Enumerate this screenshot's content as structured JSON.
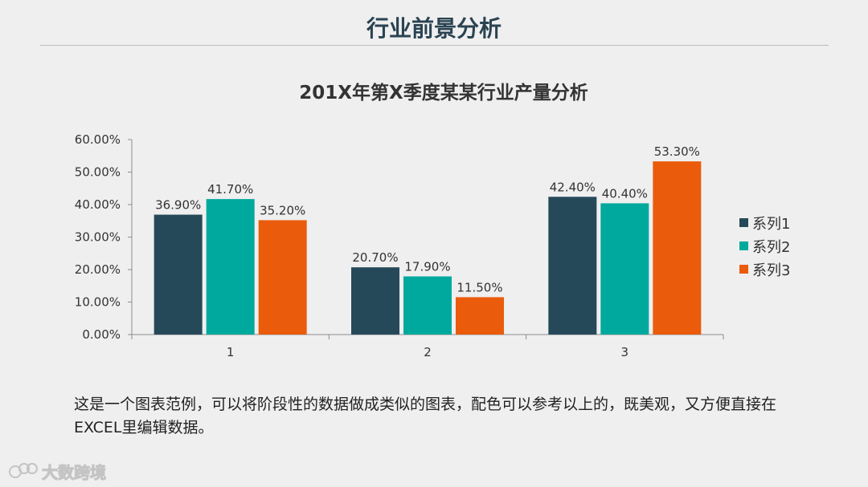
{
  "page": {
    "title": "行业前景分析",
    "caption": "这是一个图表范例，可以将阶段性的数据做成类似的图表，配色可以参考以上的，既美观，又方便直接在EXCEL里编辑数据。",
    "watermark": "大数跨境"
  },
  "colors": {
    "series1": "#26495a",
    "series2": "#00a99d",
    "series3": "#ea5b0c",
    "axis": "#8c8c8c",
    "grid": "#d9d9d9"
  },
  "chart_data": {
    "type": "bar",
    "title": "201X年第X季度某某行业产量分析",
    "categories": [
      "1",
      "2",
      "3"
    ],
    "series": [
      {
        "name": "系列1",
        "values": [
          36.9,
          20.7,
          42.4
        ],
        "labels": [
          "36.90%",
          "20.70%",
          "42.40%"
        ]
      },
      {
        "name": "系列2",
        "values": [
          41.7,
          17.9,
          40.4
        ],
        "labels": [
          "41.70%",
          "17.90%",
          "40.40%"
        ]
      },
      {
        "name": "系列3",
        "values": [
          35.2,
          11.5,
          53.3
        ],
        "labels": [
          "35.20%",
          "11.50%",
          "53.30%"
        ]
      }
    ],
    "ylim": [
      0,
      60
    ],
    "yticks": [
      0,
      10,
      20,
      30,
      40,
      50,
      60
    ],
    "ytick_labels": [
      "0.00%",
      "10.00%",
      "20.00%",
      "30.00%",
      "40.00%",
      "50.00%",
      "60.00%"
    ],
    "xlabel": "",
    "ylabel": "",
    "grid": false,
    "legend_position": "right"
  }
}
